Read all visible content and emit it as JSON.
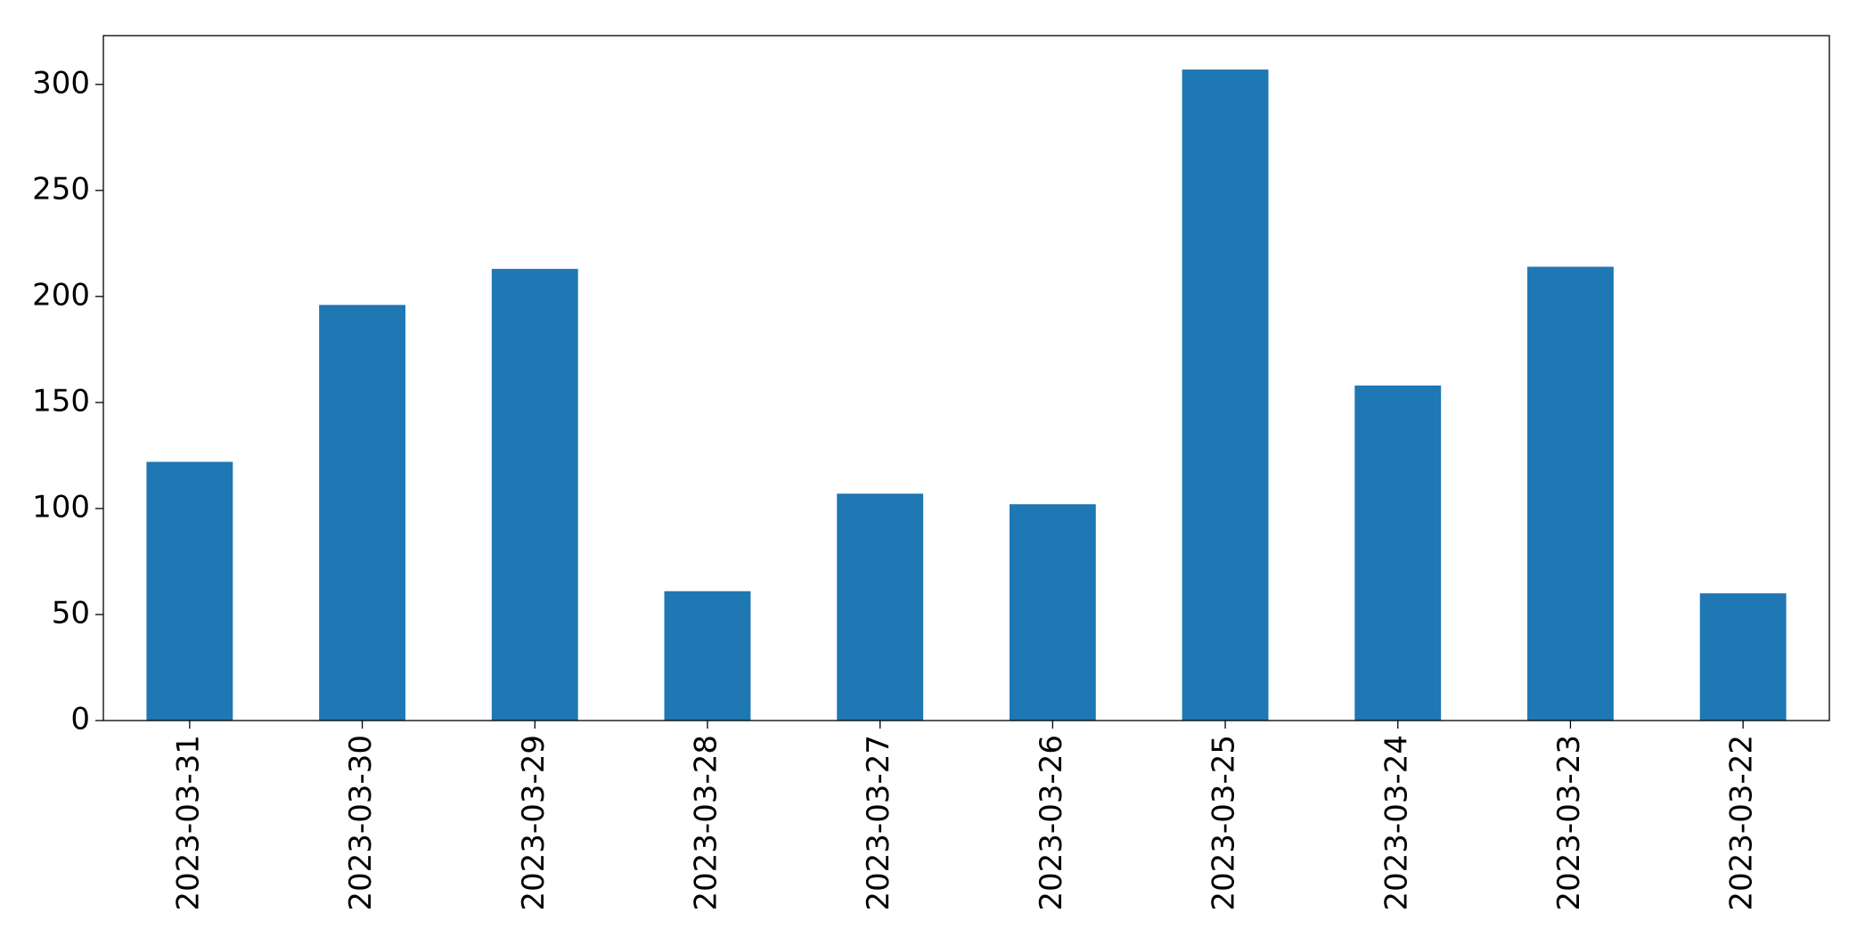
{
  "chart_data": {
    "type": "bar",
    "categories": [
      "2023-03-31",
      "2023-03-30",
      "2023-03-29",
      "2023-03-28",
      "2023-03-27",
      "2023-03-26",
      "2023-03-25",
      "2023-03-24",
      "2023-03-23",
      "2023-03-22"
    ],
    "values": [
      122,
      196,
      213,
      61,
      107,
      102,
      307,
      158,
      214,
      60
    ],
    "color": "#1f77b4",
    "ylim": [
      0,
      323
    ],
    "yticks": [
      0,
      50,
      100,
      150,
      200,
      250,
      300
    ],
    "grid": false
  }
}
